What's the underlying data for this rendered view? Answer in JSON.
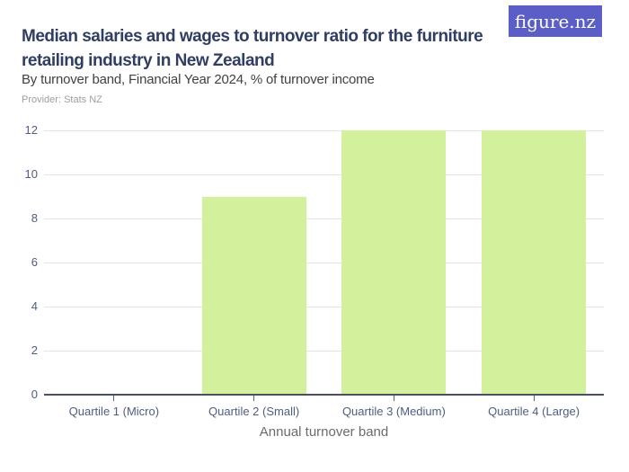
{
  "header": {
    "title": "Median salaries and wages to turnover ratio for the furniture retailing industry in New Zealand",
    "subtitle": "By turnover band, Financial Year 2024, % of turnover income",
    "provider": "Provider: Stats NZ",
    "logo_text": "figure.nz",
    "logo_bg": "#5a5ec6"
  },
  "chart_data": {
    "type": "bar",
    "title": "Median salaries and wages to turnover ratio for the furniture retailing industry in New Zealand",
    "subtitle": "By turnover band, Financial Year 2024, % of turnover income",
    "categories": [
      "Quartile 1 (Micro)",
      "Quartile 2 (Small)",
      "Quartile 3 (Medium)",
      "Quartile 4 (Large)"
    ],
    "values": [
      0,
      9,
      12,
      12
    ],
    "xlabel": "Annual turnover band",
    "ylabel": "",
    "ylim": [
      0,
      12
    ],
    "y_ticks": [
      0,
      2,
      4,
      6,
      8,
      10,
      12
    ],
    "grid": true,
    "legend": "none",
    "bar_color": "#d3f09c",
    "gridline_color": "#e4e4e6",
    "baseline_color": "#4a5060",
    "tick_color": "#58627f",
    "axis_label_color": "#4f5d80"
  }
}
